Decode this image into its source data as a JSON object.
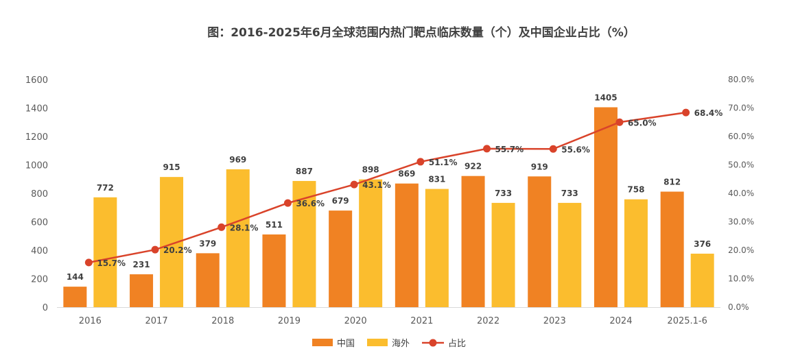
{
  "chart_data": {
    "type": "bar",
    "title": "图：2016-2025年6月全球范围内热门靶点临床数量（个）及中国企业占比（%）",
    "categories": [
      "2016",
      "2017",
      "2018",
      "2019",
      "2020",
      "2021",
      "2022",
      "2023",
      "2024",
      "2025.1-6"
    ],
    "series": [
      {
        "name": "中国",
        "type": "bar",
        "color": "#F08223",
        "values": [
          144,
          231,
          379,
          511,
          679,
          869,
          922,
          919,
          1405,
          812
        ]
      },
      {
        "name": "海外",
        "type": "bar",
        "color": "#FBBD2E",
        "values": [
          772,
          915,
          969,
          887,
          898,
          831,
          733,
          733,
          758,
          376
        ]
      },
      {
        "name": "占比",
        "type": "line",
        "axis": "right",
        "color": "#D9432A",
        "values": [
          15.7,
          20.2,
          28.1,
          36.6,
          43.1,
          51.1,
          55.7,
          55.6,
          65.0,
          68.4
        ],
        "labels": [
          "15.7%",
          "20.2%",
          "28.1%",
          "36.6%",
          "43.1%",
          "51.1%",
          "55.7%",
          "55.6%",
          "65.0%",
          "68.4%"
        ]
      }
    ],
    "y_left": {
      "range": [
        0,
        1600
      ],
      "ticks": [
        "0",
        "200",
        "400",
        "600",
        "800",
        "1000",
        "1200",
        "1400",
        "1600"
      ]
    },
    "y_right": {
      "range": [
        0,
        80
      ],
      "ticks": [
        "0.0%",
        "10.0%",
        "20.0%",
        "30.0%",
        "40.0%",
        "50.0%",
        "60.0%",
        "70.0%",
        "80.0%"
      ]
    },
    "grid": false,
    "legend": "bottom"
  }
}
